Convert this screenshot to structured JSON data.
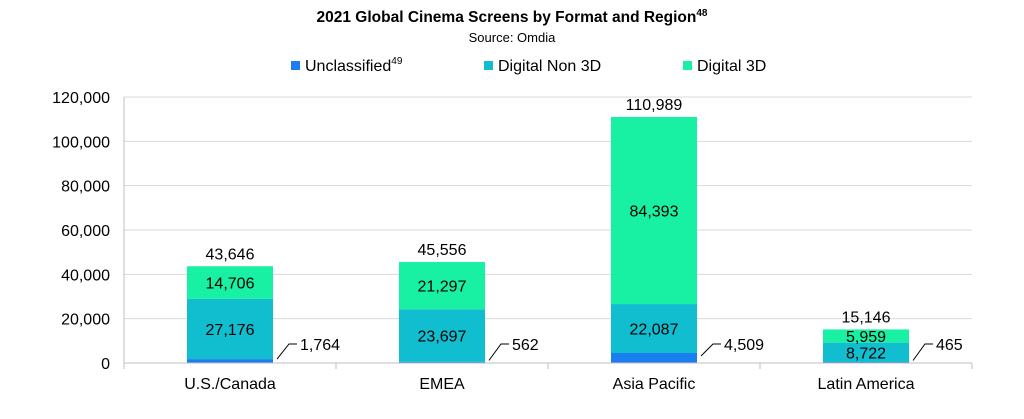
{
  "chart_data": {
    "type": "bar",
    "stacked": true,
    "title": "2021 Global Cinema Screens by Format and Region",
    "title_sup": "48",
    "subtitle": "Source: Omdia",
    "categories": [
      "U.S./Canada",
      "EMEA",
      "Asia Pacific",
      "Latin America"
    ],
    "series": [
      {
        "name": "Unclassified",
        "name_sup": "49",
        "color": "#1a7ef0",
        "values": [
          1764,
          562,
          4509,
          465
        ],
        "labels": [
          "1,764",
          "562",
          "4,509",
          "465"
        ]
      },
      {
        "name": "Digital Non 3D",
        "color": "#10bed0",
        "values": [
          27176,
          23697,
          22087,
          8722
        ],
        "labels": [
          "27,176",
          "23,697",
          "22,087",
          "8,722"
        ]
      },
      {
        "name": "Digital 3D",
        "color": "#18f0a4",
        "values": [
          14706,
          21297,
          84393,
          5959
        ],
        "labels": [
          "14,706",
          "21,297",
          "84,393",
          "5,959"
        ]
      }
    ],
    "totals": [
      "43,646",
      "45,556",
      "110,989",
      "15,146"
    ],
    "ylim": [
      0,
      120000
    ],
    "yticks": [
      0,
      20000,
      40000,
      60000,
      80000,
      100000,
      120000
    ],
    "ytick_labels": [
      "0",
      "20,000",
      "40,000",
      "60,000",
      "80,000",
      "100,000",
      "120,000"
    ],
    "grid": true,
    "legend_position": "top-center",
    "xlabel": "",
    "ylabel": ""
  }
}
